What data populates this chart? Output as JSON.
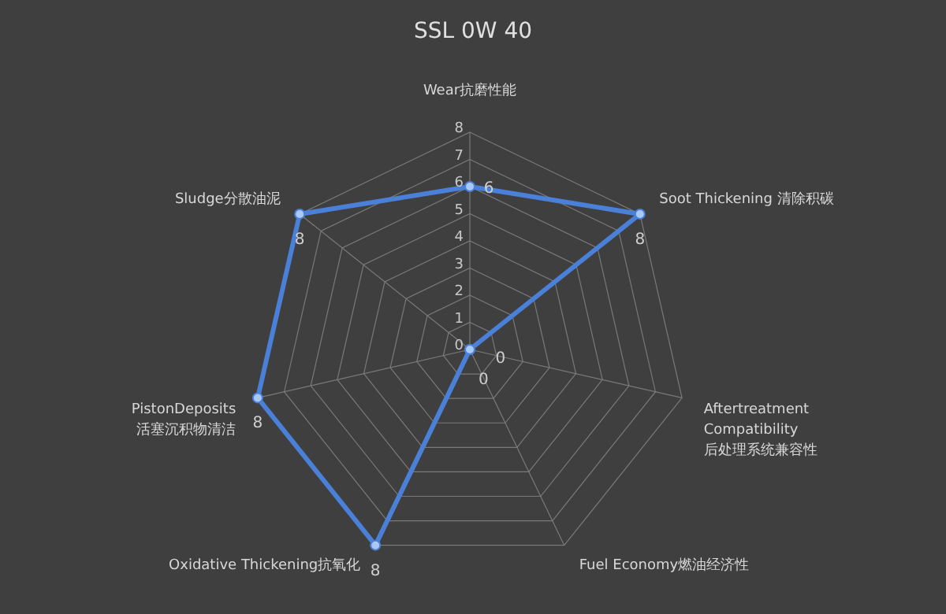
{
  "chart_data": {
    "type": "radar",
    "title": "SSL 0W 40",
    "categories": [
      "Wear抗磨性能",
      "Soot Thickening 清除积碳",
      "Aftertreatment Compatibility 后处理系统兼容性",
      "Fuel Economy燃油经济性",
      "Oxidative Thickening抗氧化",
      "PistonDeposits 活塞沉积物清洁",
      "Sludge分散油泥"
    ],
    "series": [
      {
        "color": "#4a80d8",
        "values": [
          6,
          8,
          0,
          0,
          8,
          8,
          8
        ]
      }
    ],
    "ylim": [
      0,
      8
    ],
    "yticks": [
      0,
      1,
      2,
      3,
      4,
      5,
      6,
      7,
      8
    ],
    "grid": true,
    "data_labels": true,
    "marker": "circle",
    "legend": false
  }
}
